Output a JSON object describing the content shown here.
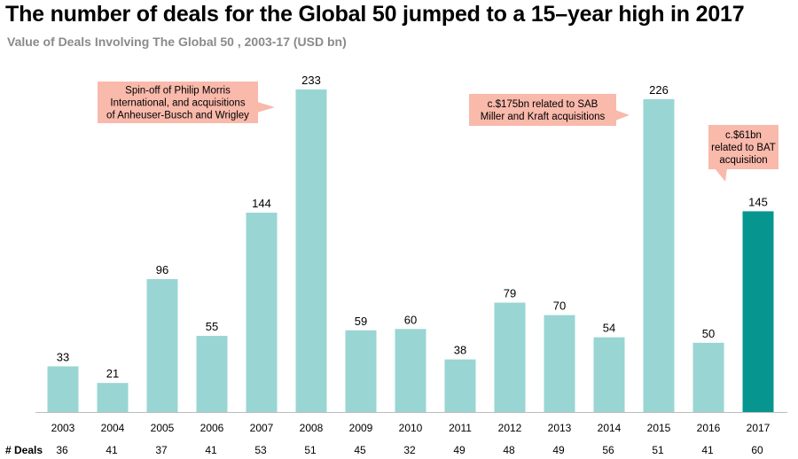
{
  "chart_data": {
    "type": "bar",
    "title": "The number of deals for the Global 50 jumped to a 15–year high in 2017",
    "subtitle": "Value of Deals Involving The Global 50 , 2003-17  (USD bn)",
    "categories": [
      "2003",
      "2004",
      "2005",
      "2006",
      "2007",
      "2008",
      "2009",
      "2010",
      "2011",
      "2012",
      "2013",
      "2014",
      "2015",
      "2016",
      "2017"
    ],
    "values": [
      33,
      21,
      96,
      55,
      144,
      233,
      59,
      60,
      38,
      79,
      70,
      54,
      226,
      50,
      145
    ],
    "deals_label": "# Deals",
    "deals": [
      36,
      41,
      37,
      41,
      53,
      51,
      45,
      32,
      49,
      48,
      49,
      56,
      51,
      41,
      60
    ],
    "ylim": [
      0,
      240
    ],
    "grid": false,
    "colors": {
      "bar": "#99d5d3",
      "highlight": "#06968f",
      "callout": "#f9b9ab"
    },
    "highlight_category": "2017",
    "annotations": [
      {
        "category": "2008",
        "lines": [
          "Spin-off of Philip Morris",
          "International, and acquisitions",
          "of Anheuser-Busch and Wrigley"
        ]
      },
      {
        "category": "2015",
        "lines": [
          "c.$175bn related to SAB",
          "Miller and Kraft acquisitions"
        ]
      },
      {
        "category": "2017",
        "lines": [
          "c.$61bn",
          "related to BAT",
          "acquisition"
        ]
      }
    ]
  }
}
